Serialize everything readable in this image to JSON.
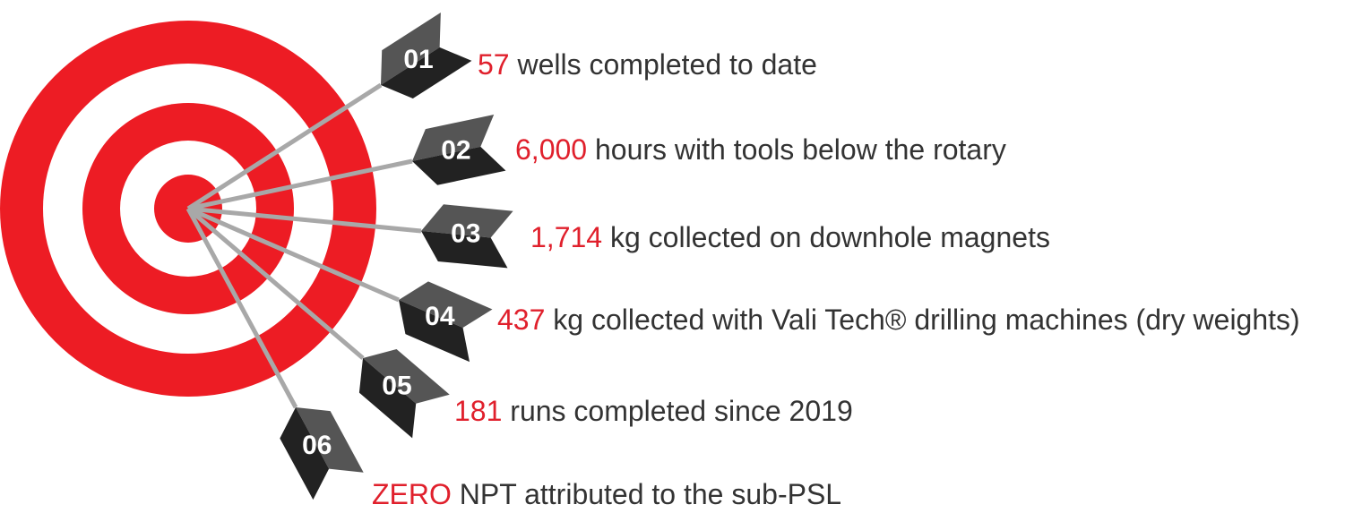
{
  "items": [
    {
      "number": "01",
      "highlight": "57",
      "text": "wells completed to date"
    },
    {
      "number": "02",
      "highlight": "6,000",
      "text": "hours with tools below the rotary"
    },
    {
      "number": "03",
      "highlight": "1,714",
      "text": "kg collected on downhole magnets"
    },
    {
      "number": "04",
      "highlight": "437",
      "text": "kg collected with Vali Tech® drilling machines (dry weights)"
    },
    {
      "number": "05",
      "highlight": "181",
      "text": "runs completed since 2019"
    },
    {
      "number": "06",
      "highlight": "ZERO",
      "text": "NPT attributed to the sub-PSL"
    }
  ]
}
